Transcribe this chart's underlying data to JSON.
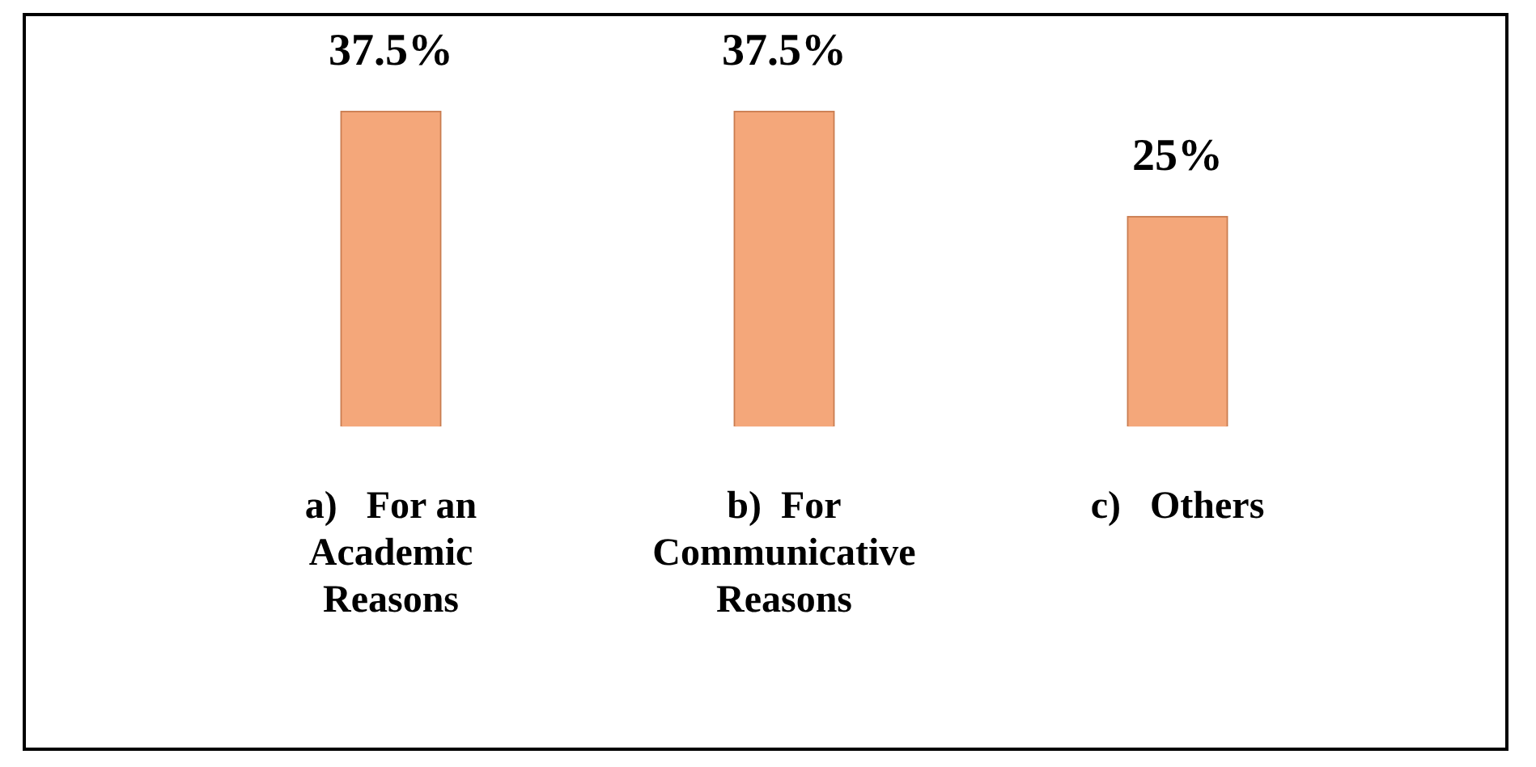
{
  "chart_data": {
    "type": "bar",
    "categories": [
      "a)   For an Academic Reasons",
      "b)  For Communicative Reasons",
      "c)   Others"
    ],
    "values": [
      37.5,
      37.5,
      25
    ],
    "value_labels": [
      "37.5%",
      "37.5%",
      "25%"
    ],
    "color": "#f4a77a",
    "legend": false,
    "grid": false
  }
}
